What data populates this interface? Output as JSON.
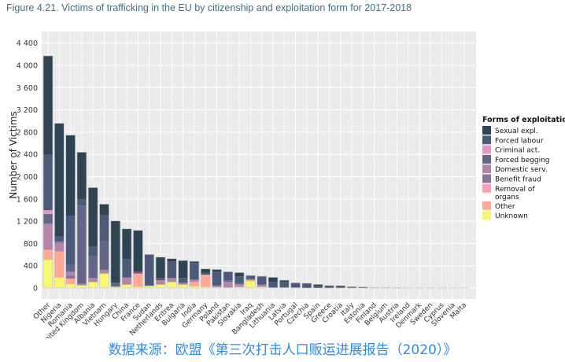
{
  "title": "Figure 4.21. Victims of trafficking in the EU by citizenship and exploitation form for 2017-2018",
  "source": "数据来源：欧盟《第三次打击人口贩运进展报告（2020）》",
  "chart_data": {
    "type": "bar",
    "stacked": true,
    "ylabel": "Number of Victims",
    "xlabel": "",
    "ylim": [
      0,
      4400
    ],
    "yticks": [
      "0",
      "400",
      "800",
      "1 200",
      "1 600",
      "2 000",
      "2 400",
      "2 800",
      "3 200",
      "3 600",
      "4 000",
      "4 400"
    ],
    "grid": true,
    "legend_title": "Forms of exploitation",
    "legend_position": "right",
    "categories": [
      "Other",
      "Nigeria",
      "Romania",
      "United Kingdom",
      "Albania",
      "Vietnam",
      "Hungary",
      "China",
      "France",
      "Sudan",
      "Netherlands",
      "Eritrea",
      "Bulgaria",
      "India",
      "Germany",
      "Poland",
      "Pakistan",
      "Slovakia",
      "Iraq",
      "Bangladesh",
      "Lithuania",
      "Latvia",
      "Portugal",
      "Czechia",
      "Spain",
      "Greece",
      "Croatia",
      "Italy",
      "Estonia",
      "Finland",
      "Belgium",
      "Austria",
      "Ireland",
      "Denmark",
      "Sweden",
      "Cyprus",
      "Slovenia",
      "Malta"
    ],
    "series": [
      {
        "name": "Sexual expl.",
        "color": "#2e4453",
        "values": [
          1768,
          2025,
          1446,
          848,
          1060,
          198,
          1107,
          546,
          739,
          0,
          375,
          59,
          316,
          30,
          74,
          39,
          22,
          68,
          6,
          12,
          83,
          31,
          4,
          20,
          26,
          7,
          22,
          10,
          4,
          0,
          0,
          0,
          0,
          0,
          0,
          0,
          0,
          0
        ]
      },
      {
        "name": "Forced labour",
        "color": "#4a5a78",
        "values": [
          1003,
          88,
          876,
          118,
          165,
          461,
          0,
          330,
          0,
          547,
          40,
          290,
          85,
          300,
          30,
          250,
          130,
          120,
          60,
          140,
          100,
          100,
          80,
          65,
          40,
          40,
          20,
          14,
          15,
          0,
          4,
          8,
          3,
          3,
          3,
          3,
          3,
          2
        ]
      },
      {
        "name": "Criminal act.",
        "color": "#e39bbd",
        "values": [
          71,
          0,
          0,
          0,
          0,
          0,
          0,
          0,
          0,
          0,
          0,
          0,
          0,
          0,
          0,
          0,
          0,
          0,
          0,
          0,
          0,
          0,
          0,
          0,
          0,
          0,
          0,
          0,
          0,
          0,
          0,
          0,
          0,
          0,
          0,
          0,
          0,
          0
        ]
      },
      {
        "name": "Forced begging",
        "color": "#646588",
        "values": [
          174,
          30,
          132,
          1399,
          400,
          523,
          75,
          0,
          38,
          18,
          0,
          0,
          0,
          0,
          0,
          0,
          30,
          20,
          0,
          0,
          0,
          0,
          0,
          0,
          0,
          0,
          0,
          0,
          0,
          0,
          0,
          0,
          0,
          0,
          0,
          0,
          0,
          0
        ]
      },
      {
        "name": "Domestic serv.",
        "color": "#b584ab",
        "values": [
          466,
          156,
          62,
          28,
          71,
          66,
          0,
          127,
          0,
          0,
          80,
          71,
          33,
          40,
          0,
          30,
          100,
          50,
          20,
          40,
          0,
          0,
          0,
          0,
          0,
          0,
          0,
          0,
          0,
          0,
          0,
          0,
          0,
          0,
          0,
          0,
          0,
          0
        ]
      },
      {
        "name": "Benefit fraud",
        "color": "#88759d",
        "values": [
          0,
          0,
          60,
          0,
          0,
          0,
          0,
          0,
          0,
          0,
          0,
          0,
          0,
          0,
          0,
          0,
          0,
          0,
          0,
          0,
          0,
          0,
          0,
          0,
          0,
          0,
          0,
          0,
          0,
          0,
          0,
          0,
          0,
          0,
          0,
          0,
          0,
          0
        ]
      },
      {
        "name": "Removal of organs",
        "color": "#ffa0b4",
        "values": [
          0,
          0,
          0,
          0,
          0,
          0,
          0,
          0,
          0,
          0,
          0,
          0,
          0,
          0,
          0,
          0,
          0,
          0,
          0,
          0,
          0,
          0,
          0,
          0,
          0,
          0,
          0,
          0,
          0,
          0,
          0,
          0,
          0,
          0,
          0,
          0,
          0,
          0
        ]
      },
      {
        "name": "Other",
        "color": "#ffa996",
        "values": [
          179,
          471,
          99,
          0,
          0,
          0,
          0,
          0,
          235,
          0,
          0,
          0,
          0,
          80,
          220,
          0,
          0,
          0,
          20,
          0,
          0,
          0,
          10,
          0,
          0,
          0,
          0,
          0,
          0,
          0,
          0,
          0,
          0,
          0,
          0,
          0,
          0,
          0
        ]
      },
      {
        "name": "Unknown",
        "color": "#f8f770",
        "values": [
          509,
          188,
          71,
          47,
          108,
          259,
          24,
          61,
          24,
          38,
          61,
          108,
          61,
          30,
          20,
          15,
          10,
          20,
          120,
          20,
          10,
          10,
          0,
          0,
          0,
          0,
          0,
          0,
          0,
          10,
          6,
          0,
          0,
          0,
          0,
          0,
          0,
          0
        ]
      }
    ]
  }
}
